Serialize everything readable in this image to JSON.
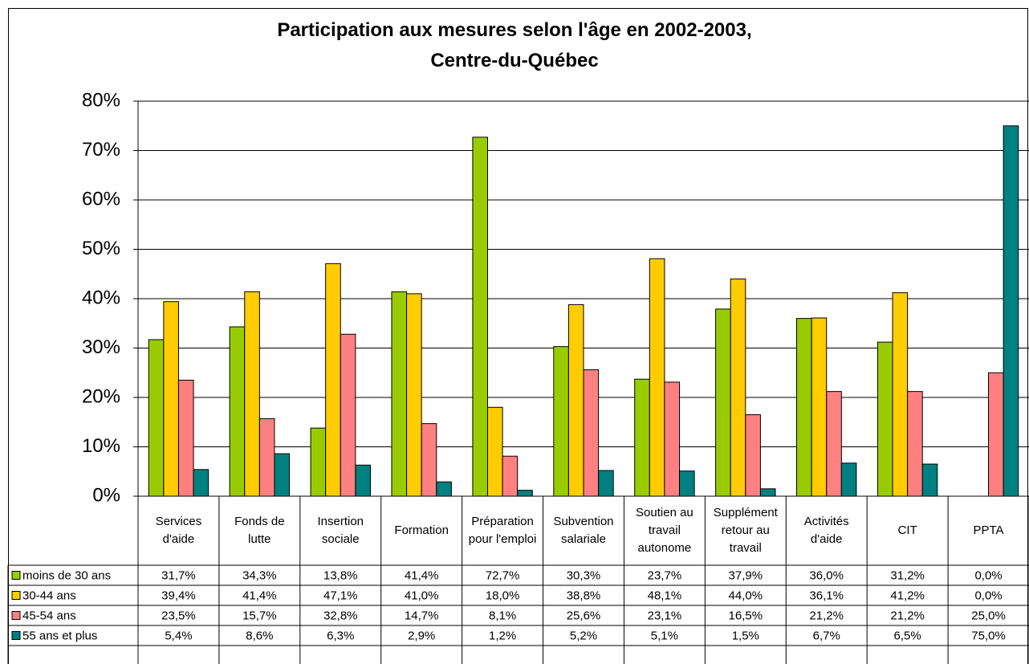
{
  "chart_data": {
    "type": "bar",
    "title": [
      "Participation aux mesures selon l'âge en 2002-2003,",
      "Centre-du-Québec"
    ],
    "categories": [
      "Services d'aide",
      "Fonds de lutte",
      "Insertion sociale",
      "Formation",
      "Préparation pour l'emploi",
      "Subvention salariale",
      "Soutien au travail autonome",
      "Supplément retour au travail",
      "Activités d'aide",
      "CIT",
      "PPTA"
    ],
    "series": [
      {
        "name": "moins de 30 ans",
        "color": "#99cc00",
        "values": [
          31.7,
          34.3,
          13.8,
          41.4,
          72.7,
          30.3,
          23.7,
          37.9,
          36.0,
          31.2,
          0.0
        ],
        "value_labels": [
          "31,7%",
          "34,3%",
          "13,8%",
          "41,4%",
          "72,7%",
          "30,3%",
          "23,7%",
          "37,9%",
          "36,0%",
          "31,2%",
          "0,0%"
        ]
      },
      {
        "name": "30-44 ans",
        "color": "#ffcc00",
        "values": [
          39.4,
          41.4,
          47.1,
          41.0,
          18.0,
          38.8,
          48.1,
          44.0,
          36.1,
          41.2,
          0.0
        ],
        "value_labels": [
          "39,4%",
          "41,4%",
          "47,1%",
          "41,0%",
          "18,0%",
          "38,8%",
          "48,1%",
          "44,0%",
          "36,1%",
          "41,2%",
          "0,0%"
        ]
      },
      {
        "name": "45-54 ans",
        "color": "#ff8080",
        "values": [
          23.5,
          15.7,
          32.8,
          14.7,
          8.1,
          25.6,
          23.1,
          16.5,
          21.2,
          21.2,
          25.0
        ],
        "value_labels": [
          "23,5%",
          "15,7%",
          "32,8%",
          "14,7%",
          "8,1%",
          "25,6%",
          "23,1%",
          "16,5%",
          "21,2%",
          "21,2%",
          "25,0%"
        ]
      },
      {
        "name": "55 ans et plus",
        "color": "#008080",
        "values": [
          5.4,
          8.6,
          6.3,
          2.9,
          1.2,
          5.2,
          5.1,
          1.5,
          6.7,
          6.5,
          75.0
        ],
        "value_labels": [
          "5,4%",
          "8,6%",
          "6,3%",
          "2,9%",
          "1,2%",
          "5,2%",
          "5,1%",
          "1,5%",
          "6,7%",
          "6,5%",
          "75,0%"
        ]
      }
    ],
    "ylim": [
      0,
      80
    ],
    "yticks": [
      {
        "value": 0,
        "label": "0%"
      },
      {
        "value": 10,
        "label": "10%"
      },
      {
        "value": 20,
        "label": "20%"
      },
      {
        "value": 30,
        "label": "30%"
      },
      {
        "value": 40,
        "label": "40%"
      },
      {
        "value": 50,
        "label": "50%"
      },
      {
        "value": 60,
        "label": "60%"
      },
      {
        "value": 70,
        "label": "70%"
      },
      {
        "value": 80,
        "label": "80%"
      }
    ],
    "grid": true
  }
}
